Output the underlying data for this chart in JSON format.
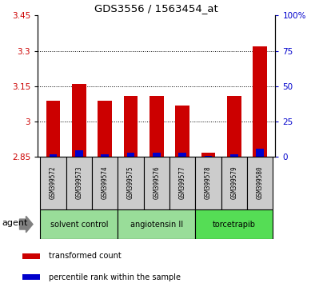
{
  "title": "GDS3556 / 1563454_at",
  "samples": [
    "GSM399572",
    "GSM399573",
    "GSM399574",
    "GSM399575",
    "GSM399576",
    "GSM399577",
    "GSM399578",
    "GSM399579",
    "GSM399580"
  ],
  "transformed_count": [
    3.09,
    3.16,
    3.09,
    3.11,
    3.11,
    3.07,
    2.87,
    3.11,
    3.32
  ],
  "percentile_rank": [
    2,
    5,
    2,
    3,
    3,
    3,
    1,
    2,
    6
  ],
  "ymin": 2.85,
  "ymax": 3.45,
  "yticks": [
    2.85,
    3.0,
    3.15,
    3.3,
    3.45
  ],
  "ytick_labels": [
    "2.85",
    "3",
    "3.15",
    "3.3",
    "3.45"
  ],
  "right_yticks": [
    0,
    25,
    50,
    75,
    100
  ],
  "right_ytick_labels": [
    "0",
    "25",
    "50",
    "75",
    "100%"
  ],
  "bar_color_red": "#cc0000",
  "bar_color_blue": "#0000cc",
  "bar_width": 0.55,
  "group_data": [
    {
      "start": 0,
      "end": 2,
      "label": "solvent control",
      "color": "#99dd99"
    },
    {
      "start": 3,
      "end": 5,
      "label": "angiotensin II",
      "color": "#99dd99"
    },
    {
      "start": 6,
      "end": 8,
      "label": "torcetrapib",
      "color": "#55dd55"
    }
  ],
  "agent_label": "agent",
  "legend_items": [
    {
      "label": "transformed count",
      "color": "#cc0000"
    },
    {
      "label": "percentile rank within the sample",
      "color": "#0000cc"
    }
  ],
  "tick_label_color_left": "#cc0000",
  "tick_label_color_right": "#0000cc",
  "sample_box_color": "#cccccc",
  "group_box_border": "#000000"
}
